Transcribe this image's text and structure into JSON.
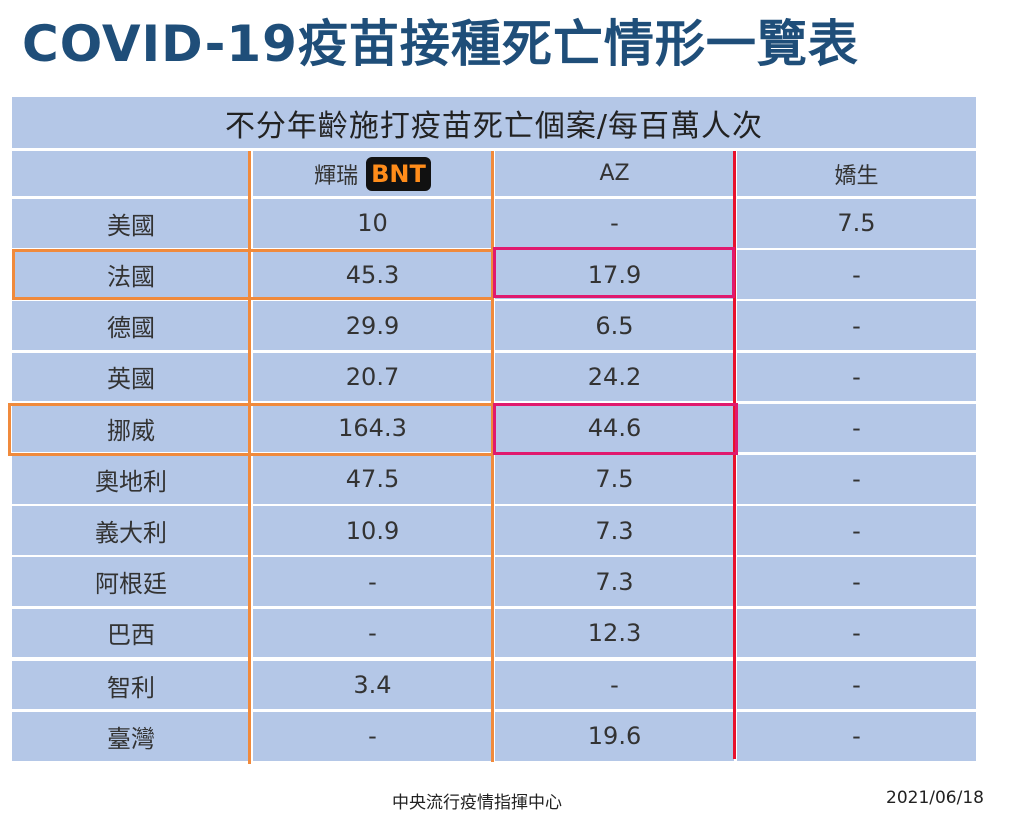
{
  "title": "COVID-19疫苗接種死亡情形一覽表",
  "subtitle": "不分年齡施打疫苗死亡個案/每百萬人次",
  "columns": {
    "pfizer": "輝瑞",
    "pfizer_badge": "BNT",
    "az": "AZ",
    "jj": "嬌生"
  },
  "rows": [
    {
      "country": "美國",
      "pfizer": "10",
      "az": "-",
      "jj": "7.5"
    },
    {
      "country": "法國",
      "pfizer": "45.3",
      "az": "17.9",
      "jj": "-"
    },
    {
      "country": "德國",
      "pfizer": "29.9",
      "az": "6.5",
      "jj": "-"
    },
    {
      "country": "英國",
      "pfizer": "20.7",
      "az": "24.2",
      "jj": "-"
    },
    {
      "country": "挪威",
      "pfizer": "164.3",
      "az": "44.6",
      "jj": "-"
    },
    {
      "country": "奧地利",
      "pfizer": "47.5",
      "az": "7.5",
      "jj": "-"
    },
    {
      "country": "義大利",
      "pfizer": "10.9",
      "az": "7.3",
      "jj": "-"
    },
    {
      "country": "阿根廷",
      "pfizer": "-",
      "az": "7.3",
      "jj": "-"
    },
    {
      "country": "巴西",
      "pfizer": "-",
      "az": "12.3",
      "jj": "-"
    },
    {
      "country": "智利",
      "pfizer": "3.4",
      "az": "-",
      "jj": "-"
    },
    {
      "country": "臺灣",
      "pfizer": "-",
      "az": "19.6",
      "jj": "-"
    }
  ],
  "footer": {
    "source": "中央流行疫情指揮中心",
    "date": "2021/06/18"
  },
  "highlight_colors": {
    "orange": "#f08a3c",
    "magenta": "#e0196e",
    "red": "#e8112d"
  }
}
